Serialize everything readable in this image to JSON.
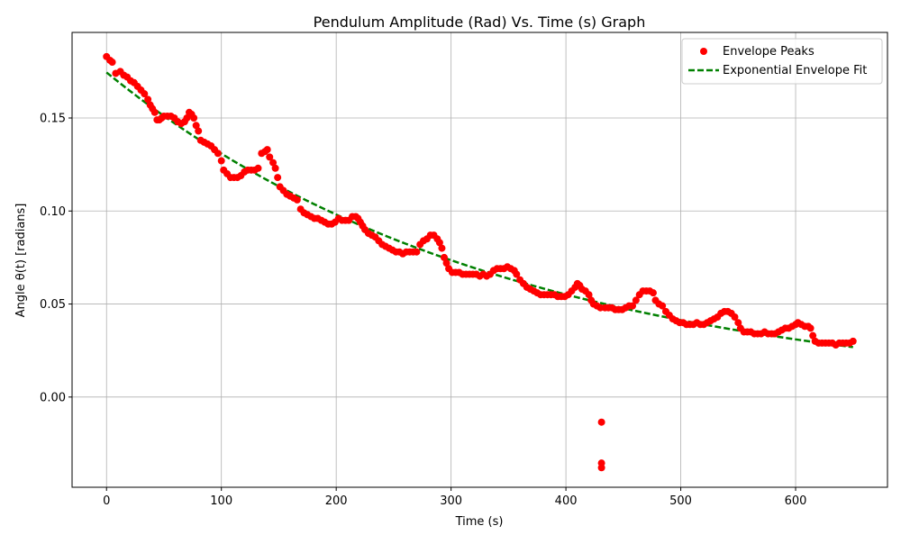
{
  "chart_data": {
    "type": "scatter",
    "title": "Pendulum Amplitude (Rad) Vs. Time (s) Graph",
    "xlabel": "Time (s)",
    "ylabel": "Angle θ(t) [radians]",
    "xlim": [
      -30,
      680
    ],
    "ylim": [
      -0.0485,
      0.196
    ],
    "xticks": [
      0,
      100,
      200,
      300,
      400,
      500,
      600
    ],
    "yticks": [
      0.0,
      0.05,
      0.1,
      0.15
    ],
    "ytick_labels": [
      "0.00",
      "0.05",
      "0.10",
      "0.15"
    ],
    "grid": true,
    "legend_position": "top-right",
    "series": [
      {
        "name": "Envelope Peaks",
        "kind": "scatter",
        "color": "#ff0000",
        "points": [
          [
            0,
            0.183
          ],
          [
            3,
            0.181
          ],
          [
            5,
            0.18
          ],
          [
            8,
            0.174
          ],
          [
            12,
            0.175
          ],
          [
            15,
            0.173
          ],
          [
            18,
            0.172
          ],
          [
            21,
            0.17
          ],
          [
            24,
            0.169
          ],
          [
            27,
            0.167
          ],
          [
            30,
            0.165
          ],
          [
            33,
            0.163
          ],
          [
            36,
            0.16
          ],
          [
            38,
            0.157
          ],
          [
            40,
            0.155
          ],
          [
            42,
            0.153
          ],
          [
            44,
            0.149
          ],
          [
            46,
            0.149
          ],
          [
            48,
            0.15
          ],
          [
            50,
            0.151
          ],
          [
            53,
            0.151
          ],
          [
            56,
            0.151
          ],
          [
            59,
            0.15
          ],
          [
            62,
            0.148
          ],
          [
            65,
            0.147
          ],
          [
            68,
            0.148
          ],
          [
            70,
            0.15
          ],
          [
            72,
            0.153
          ],
          [
            74,
            0.152
          ],
          [
            76,
            0.15
          ],
          [
            78,
            0.146
          ],
          [
            80,
            0.143
          ],
          [
            82,
            0.138
          ],
          [
            85,
            0.137
          ],
          [
            88,
            0.136
          ],
          [
            91,
            0.135
          ],
          [
            94,
            0.133
          ],
          [
            97,
            0.131
          ],
          [
            100,
            0.127
          ],
          [
            102,
            0.122
          ],
          [
            105,
            0.12
          ],
          [
            108,
            0.118
          ],
          [
            111,
            0.118
          ],
          [
            114,
            0.118
          ],
          [
            117,
            0.119
          ],
          [
            120,
            0.121
          ],
          [
            123,
            0.122
          ],
          [
            126,
            0.122
          ],
          [
            129,
            0.122
          ],
          [
            132,
            0.123
          ],
          [
            135,
            0.131
          ],
          [
            138,
            0.132
          ],
          [
            140,
            0.133
          ],
          [
            142,
            0.129
          ],
          [
            145,
            0.126
          ],
          [
            147,
            0.123
          ],
          [
            149,
            0.118
          ],
          [
            151,
            0.113
          ],
          [
            154,
            0.111
          ],
          [
            157,
            0.109
          ],
          [
            160,
            0.108
          ],
          [
            163,
            0.107
          ],
          [
            166,
            0.106
          ],
          [
            169,
            0.101
          ],
          [
            172,
            0.099
          ],
          [
            175,
            0.098
          ],
          [
            178,
            0.097
          ],
          [
            181,
            0.096
          ],
          [
            184,
            0.096
          ],
          [
            187,
            0.095
          ],
          [
            190,
            0.094
          ],
          [
            193,
            0.093
          ],
          [
            196,
            0.093
          ],
          [
            199,
            0.094
          ],
          [
            202,
            0.096
          ],
          [
            205,
            0.095
          ],
          [
            208,
            0.095
          ],
          [
            211,
            0.095
          ],
          [
            214,
            0.097
          ],
          [
            217,
            0.097
          ],
          [
            219,
            0.096
          ],
          [
            221,
            0.094
          ],
          [
            223,
            0.092
          ],
          [
            225,
            0.09
          ],
          [
            228,
            0.088
          ],
          [
            231,
            0.087
          ],
          [
            234,
            0.086
          ],
          [
            237,
            0.084
          ],
          [
            240,
            0.082
          ],
          [
            243,
            0.081
          ],
          [
            246,
            0.08
          ],
          [
            249,
            0.079
          ],
          [
            252,
            0.078
          ],
          [
            255,
            0.078
          ],
          [
            258,
            0.077
          ],
          [
            261,
            0.078
          ],
          [
            264,
            0.078
          ],
          [
            267,
            0.078
          ],
          [
            270,
            0.078
          ],
          [
            273,
            0.082
          ],
          [
            276,
            0.084
          ],
          [
            279,
            0.085
          ],
          [
            282,
            0.087
          ],
          [
            285,
            0.087
          ],
          [
            288,
            0.085
          ],
          [
            290,
            0.083
          ],
          [
            292,
            0.08
          ],
          [
            294,
            0.075
          ],
          [
            296,
            0.072
          ],
          [
            298,
            0.069
          ],
          [
            301,
            0.067
          ],
          [
            304,
            0.067
          ],
          [
            307,
            0.067
          ],
          [
            310,
            0.066
          ],
          [
            313,
            0.066
          ],
          [
            316,
            0.066
          ],
          [
            319,
            0.066
          ],
          [
            322,
            0.066
          ],
          [
            325,
            0.065
          ],
          [
            328,
            0.066
          ],
          [
            331,
            0.065
          ],
          [
            334,
            0.066
          ],
          [
            337,
            0.068
          ],
          [
            340,
            0.069
          ],
          [
            343,
            0.069
          ],
          [
            346,
            0.069
          ],
          [
            349,
            0.07
          ],
          [
            352,
            0.069
          ],
          [
            355,
            0.068
          ],
          [
            357,
            0.066
          ],
          [
            360,
            0.063
          ],
          [
            363,
            0.061
          ],
          [
            366,
            0.059
          ],
          [
            369,
            0.058
          ],
          [
            372,
            0.057
          ],
          [
            375,
            0.056
          ],
          [
            378,
            0.055
          ],
          [
            381,
            0.055
          ],
          [
            384,
            0.055
          ],
          [
            387,
            0.055
          ],
          [
            390,
            0.055
          ],
          [
            393,
            0.054
          ],
          [
            396,
            0.054
          ],
          [
            399,
            0.054
          ],
          [
            402,
            0.055
          ],
          [
            405,
            0.057
          ],
          [
            408,
            0.059
          ],
          [
            410,
            0.061
          ],
          [
            412,
            0.06
          ],
          [
            414,
            0.058
          ],
          [
            417,
            0.057
          ],
          [
            420,
            0.055
          ],
          [
            422,
            0.052
          ],
          [
            424,
            0.05
          ],
          [
            427,
            0.049
          ],
          [
            430,
            0.048
          ],
          [
            431,
            -0.0135
          ],
          [
            431,
            -0.0355
          ],
          [
            431,
            -0.038
          ],
          [
            434,
            0.048
          ],
          [
            437,
            0.048
          ],
          [
            440,
            0.048
          ],
          [
            443,
            0.047
          ],
          [
            446,
            0.047
          ],
          [
            449,
            0.047
          ],
          [
            452,
            0.048
          ],
          [
            455,
            0.049
          ],
          [
            458,
            0.049
          ],
          [
            461,
            0.052
          ],
          [
            464,
            0.055
          ],
          [
            467,
            0.057
          ],
          [
            470,
            0.057
          ],
          [
            473,
            0.057
          ],
          [
            476,
            0.056
          ],
          [
            478,
            0.052
          ],
          [
            481,
            0.05
          ],
          [
            484,
            0.049
          ],
          [
            487,
            0.046
          ],
          [
            490,
            0.044
          ],
          [
            493,
            0.042
          ],
          [
            496,
            0.041
          ],
          [
            499,
            0.04
          ],
          [
            502,
            0.04
          ],
          [
            505,
            0.039
          ],
          [
            508,
            0.039
          ],
          [
            511,
            0.039
          ],
          [
            514,
            0.04
          ],
          [
            517,
            0.039
          ],
          [
            520,
            0.039
          ],
          [
            523,
            0.04
          ],
          [
            526,
            0.041
          ],
          [
            529,
            0.042
          ],
          [
            532,
            0.043
          ],
          [
            535,
            0.045
          ],
          [
            538,
            0.046
          ],
          [
            541,
            0.046
          ],
          [
            544,
            0.045
          ],
          [
            547,
            0.043
          ],
          [
            550,
            0.04
          ],
          [
            552,
            0.037
          ],
          [
            555,
            0.035
          ],
          [
            558,
            0.035
          ],
          [
            561,
            0.035
          ],
          [
            564,
            0.034
          ],
          [
            567,
            0.034
          ],
          [
            570,
            0.034
          ],
          [
            573,
            0.035
          ],
          [
            576,
            0.034
          ],
          [
            579,
            0.034
          ],
          [
            582,
            0.034
          ],
          [
            585,
            0.035
          ],
          [
            588,
            0.036
          ],
          [
            591,
            0.037
          ],
          [
            594,
            0.037
          ],
          [
            597,
            0.038
          ],
          [
            600,
            0.039
          ],
          [
            602,
            0.04
          ],
          [
            605,
            0.039
          ],
          [
            608,
            0.038
          ],
          [
            611,
            0.038
          ],
          [
            613,
            0.037
          ],
          [
            615,
            0.033
          ],
          [
            617,
            0.03
          ],
          [
            620,
            0.029
          ],
          [
            623,
            0.029
          ],
          [
            626,
            0.029
          ],
          [
            629,
            0.029
          ],
          [
            632,
            0.029
          ],
          [
            635,
            0.028
          ],
          [
            638,
            0.029
          ],
          [
            641,
            0.029
          ],
          [
            644,
            0.029
          ],
          [
            647,
            0.029
          ],
          [
            650,
            0.03
          ]
        ]
      },
      {
        "name": "Exponential Envelope Fit",
        "kind": "line",
        "style": "dashed",
        "color": "#008000",
        "function": "0.1745 * exp(-0.00288 * t)",
        "x_range": [
          0,
          650
        ]
      }
    ]
  }
}
